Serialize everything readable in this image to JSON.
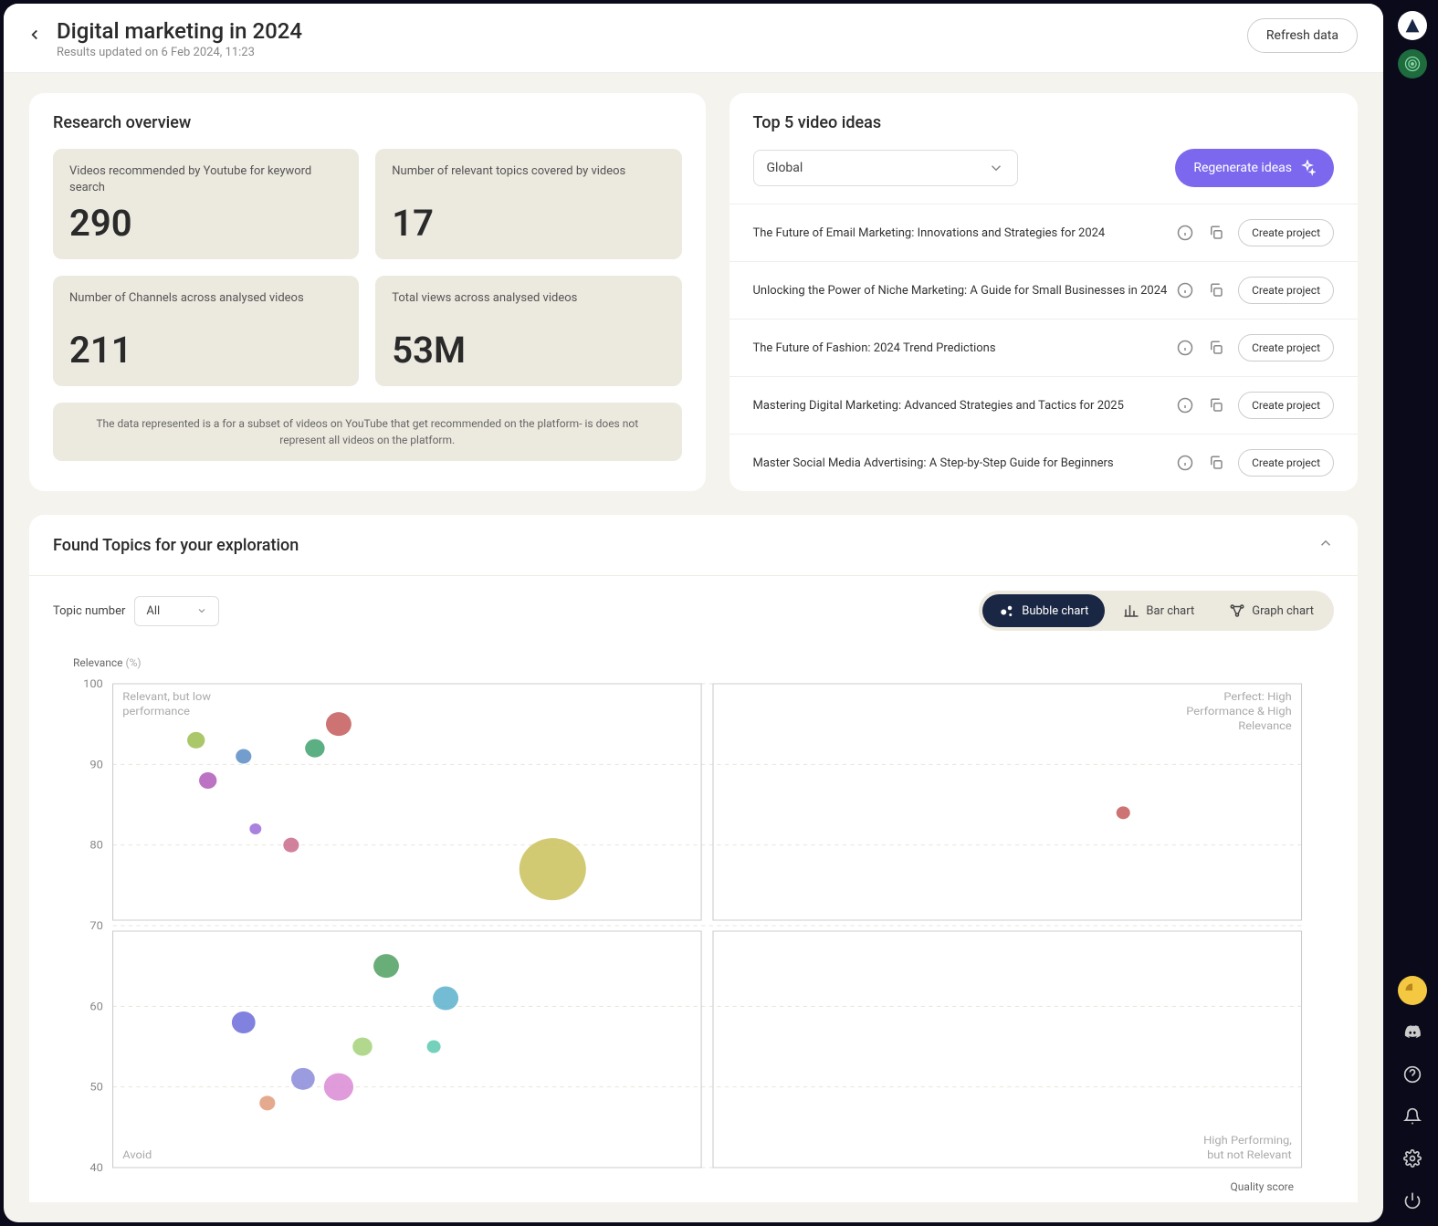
{
  "header": {
    "title": "Digital marketing in 2024",
    "subtitle": "Results updated on 6 Feb 2024, 11:23",
    "refresh_label": "Refresh data"
  },
  "overview": {
    "title": "Research overview",
    "stats": [
      {
        "label": "Videos recommended by Youtube for keyword search",
        "value": "290"
      },
      {
        "label": "Number of relevant topics covered by videos",
        "value": "17"
      },
      {
        "label": "Number of Channels across analysed videos",
        "value": "211"
      },
      {
        "label": "Total views across analysed videos",
        "value": "53M"
      }
    ],
    "disclaimer": "The data represented is a for a subset of videos on YouTube that get recommended on the platform- is does not represent all videos on the platform."
  },
  "ideas": {
    "title": "Top 5 video ideas",
    "region_selected": "Global",
    "regenerate_label": "Regenerate ideas",
    "create_label": "Create project",
    "items": [
      "The Future of Email Marketing: Innovations and Strategies for 2024",
      "Unlocking the Power of Niche Marketing: A Guide for Small Businesses in 2024",
      "The Future of Fashion: 2024 Trend Predictions",
      "Mastering Digital Marketing: Advanced Strategies and Tactics for 2025",
      "Master Social Media Advertising: A Step-by-Step Guide for Beginners"
    ]
  },
  "topics": {
    "title": "Found Topics for your exploration",
    "filter_label": "Topic number",
    "filter_value": "All",
    "toggles": {
      "bubble": "Bubble chart",
      "bar": "Bar chart",
      "graph": "Graph chart"
    }
  },
  "chart": {
    "type": "bubble",
    "y_label": "Relevance",
    "y_unit": "(%)",
    "x_label": "Quality score",
    "xlim": [
      0,
      100
    ],
    "ylim": [
      40,
      100
    ],
    "ytick_step": 10,
    "grid_color": "#e8e5dc",
    "quad_border_color": "#cccccc",
    "background_color": "#ffffff",
    "x_midline": 50,
    "y_midline": 70,
    "quadrant_labels": {
      "top_left": "Relevant, but low performance",
      "top_right": "Perfect: High Performance & High Relevance",
      "bottom_left": "Avoid",
      "bottom_right": "High Performing, but not Relevant"
    },
    "bubbles": [
      {
        "x": 19,
        "y": 95,
        "r": 13,
        "color": "#c45b5b"
      },
      {
        "x": 7,
        "y": 93,
        "r": 9,
        "color": "#9bbd4f"
      },
      {
        "x": 17,
        "y": 92,
        "r": 10,
        "color": "#3fa06d"
      },
      {
        "x": 11,
        "y": 91,
        "r": 8,
        "color": "#5b8cc4"
      },
      {
        "x": 8,
        "y": 88,
        "r": 9,
        "color": "#b05bb8"
      },
      {
        "x": 85,
        "y": 84,
        "r": 7,
        "color": "#c45b5b"
      },
      {
        "x": 12,
        "y": 82,
        "r": 6,
        "color": "#9b6bd9"
      },
      {
        "x": 15,
        "y": 80,
        "r": 8,
        "color": "#c96b8a"
      },
      {
        "x": 37,
        "y": 77,
        "r": 34,
        "color": "#c9c15b"
      },
      {
        "x": 23,
        "y": 65,
        "r": 13,
        "color": "#4fa060"
      },
      {
        "x": 28,
        "y": 61,
        "r": 13,
        "color": "#5bb0cc"
      },
      {
        "x": 11,
        "y": 58,
        "r": 12,
        "color": "#6b6bd9"
      },
      {
        "x": 21,
        "y": 55,
        "r": 10,
        "color": "#a3d178"
      },
      {
        "x": 27,
        "y": 55,
        "r": 7,
        "color": "#5bc9b0"
      },
      {
        "x": 16,
        "y": 51,
        "r": 12,
        "color": "#8a8ad9"
      },
      {
        "x": 19,
        "y": 50,
        "r": 15,
        "color": "#d98ad4"
      },
      {
        "x": 13,
        "y": 48,
        "r": 8,
        "color": "#e09b7a"
      }
    ]
  }
}
